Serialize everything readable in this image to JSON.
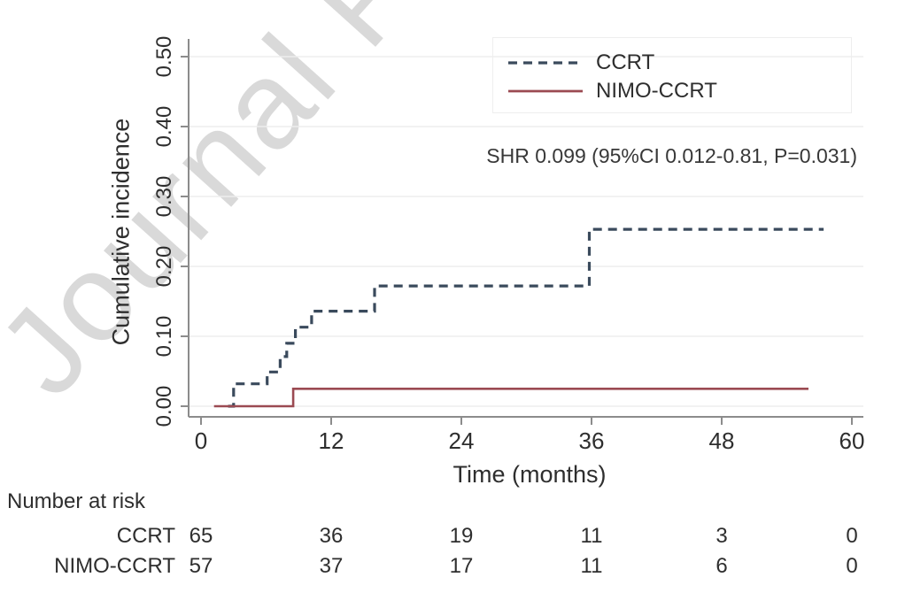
{
  "watermark": {
    "text": "Journal Pre-proof"
  },
  "legend": {
    "items": [
      {
        "label": "CCRT",
        "color": "#3a4a5c",
        "style": "dashed"
      },
      {
        "label": "NIMO-CCRT",
        "color": "#9b4a52",
        "style": "solid"
      }
    ]
  },
  "annotation": {
    "text": "SHR 0.099 (95%CI 0.012-0.81, P=0.031)"
  },
  "chart_data": {
    "type": "line",
    "subtype": "step-cumulative-incidence",
    "title": "",
    "xlabel": "Time (months)",
    "ylabel": "Cumulative incidence",
    "xlim": [
      0,
      60
    ],
    "ylim": [
      0,
      0.5
    ],
    "xticks": [
      0,
      12,
      24,
      36,
      48,
      60
    ],
    "ytick_values": [
      0,
      0.1,
      0.2,
      0.3,
      0.4,
      0.5
    ],
    "ytick_labels": [
      "0.00",
      "0.10",
      "0.20",
      "0.30",
      "0.40",
      "0.50"
    ],
    "grid": "horizontal",
    "legend_position": "top-right",
    "annotation": "SHR 0.099 (95%CI 0.012-0.81, P=0.031)",
    "series": [
      {
        "name": "CCRT",
        "color": "#3a4a5c",
        "style": "dashed",
        "points": [
          [
            2.5,
            0
          ],
          [
            3.0,
            0.032
          ],
          [
            6.1,
            0.049
          ],
          [
            7.3,
            0.071
          ],
          [
            7.9,
            0.09
          ],
          [
            8.7,
            0.113
          ],
          [
            10.2,
            0.136
          ],
          [
            16.0,
            0.172
          ],
          [
            35.8,
            0.253
          ]
        ],
        "end_time": 57.4
      },
      {
        "name": "NIMO-CCRT",
        "color": "#9b4a52",
        "style": "solid",
        "points": [
          [
            1.2,
            0
          ],
          [
            8.5,
            0.025
          ]
        ],
        "end_time": 56.0
      }
    ]
  },
  "risk_table": {
    "title": "Number at risk",
    "times": [
      0,
      12,
      24,
      36,
      48,
      60
    ],
    "rows": [
      {
        "label": "CCRT",
        "counts": [
          "65",
          "36",
          "19",
          "11",
          "3",
          "0"
        ]
      },
      {
        "label": "NIMO-CCRT",
        "counts": [
          "57",
          "37",
          "17",
          "11",
          "6",
          "0"
        ]
      }
    ]
  }
}
